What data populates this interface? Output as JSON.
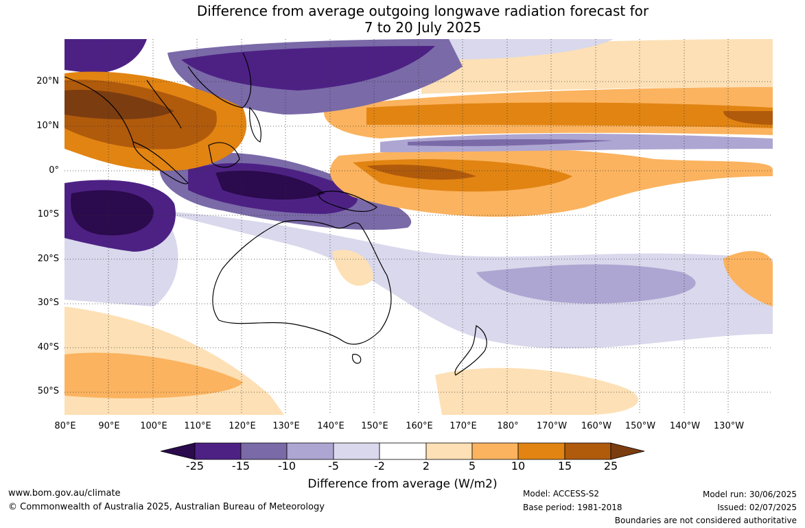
{
  "title": {
    "line1": "Difference from average outgoing longwave radiation forecast for",
    "line2": "7 to 20 July 2025"
  },
  "map": {
    "region": "Australia, Maritime Continent and West/Central Pacific",
    "lat_labels": [
      "20°N",
      "10°N",
      "0°",
      "10°S",
      "20°S",
      "30°S",
      "40°S",
      "50°S"
    ],
    "lon_labels": [
      "80°E",
      "90°E",
      "100°E",
      "110°E",
      "120°E",
      "130°E",
      "140°E",
      "150°E",
      "160°E",
      "170°E",
      "180°",
      "170°W",
      "160°W",
      "150°W",
      "140°W",
      "130°W"
    ],
    "grid": "dotted",
    "colors": {
      "lt_m25": "#2b0a4d",
      "m25_m15": "#4d2184",
      "m15_m10": "#7a6aa8",
      "m10_m5": "#ada6d2",
      "m5_m2": "#d9d8ec",
      "m2_2": "#ffffff",
      "2_5": "#fde0b5",
      "5_10": "#fbb35f",
      "10_15": "#e18412",
      "15_25": "#b05a0c",
      "gt_25": "#7b3c10"
    }
  },
  "colorbar": {
    "ticks": [
      "-25",
      "-15",
      "-10",
      "-5",
      "-2",
      "2",
      "5",
      "10",
      "15",
      "25"
    ],
    "label": "Difference from average (W/m2)"
  },
  "footer": {
    "website": "www.bom.gov.au/climate",
    "copyright": "© Commonwealth of Australia 2025, Australian Bureau of Meteorology",
    "model": "Model: ACCESS-S2",
    "base_period": "Base period: 1981-2018",
    "model_run": "Model run: 30/06/2025",
    "issued": "Issued: 02/07/2025",
    "disclaimer": "Boundaries are not considered authoritative"
  }
}
